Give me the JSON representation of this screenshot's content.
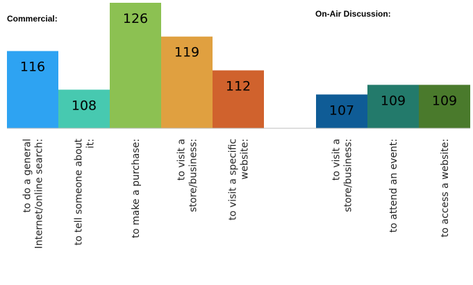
{
  "chart_data": [
    {
      "type": "bar",
      "title": "Commercial:",
      "categories": [
        "to do a general Internet/online search:",
        "to tell someone about it:",
        "to make a purchase:",
        "to visit a store/business:",
        "to visit a specific website:"
      ],
      "values": [
        116,
        108,
        126,
        119,
        112
      ],
      "colors": [
        "#2ea3f2",
        "#47c9b0",
        "#8cc152",
        "#e0a040",
        "#d0622d"
      ],
      "label_colors": [
        "#000000",
        "#000000",
        "#000000",
        "#000000",
        "#000000"
      ],
      "ylim": [
        100,
        126
      ],
      "grid": false
    },
    {
      "type": "bar",
      "title": "On-Air Discussion:",
      "categories": [
        "to visit a store/business:",
        "to attend an event:",
        "to access a website:"
      ],
      "values": [
        107,
        109,
        109
      ],
      "colors": [
        "#0f5c96",
        "#237a6b",
        "#4a7a2c"
      ],
      "label_colors": [
        "#000000",
        "#000000",
        "#000000"
      ],
      "ylim": [
        100,
        126
      ],
      "grid": false
    }
  ]
}
